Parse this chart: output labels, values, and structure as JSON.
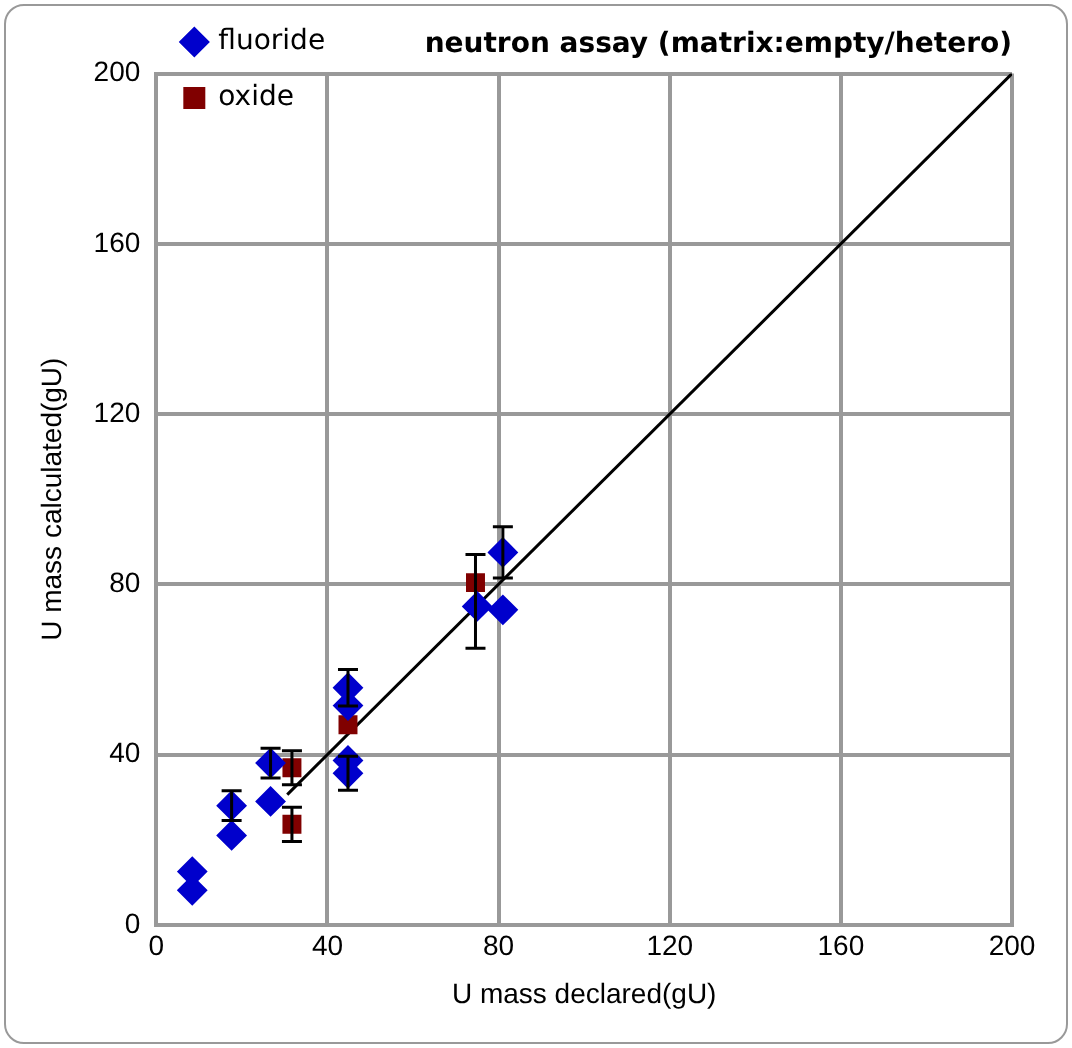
{
  "chart_data": {
    "type": "scatter",
    "title": "neutron assay (matrix:empty/hetero)",
    "xlabel": "U mass declared(gU)",
    "ylabel": "U mass calculated(gU)",
    "xlim": [
      0,
      200
    ],
    "xticks": [
      0,
      40,
      80,
      120,
      160,
      200
    ],
    "ylim": [
      0,
      200
    ],
    "yticks": [
      0,
      40,
      80,
      120,
      160,
      200
    ],
    "grid": true,
    "legend": "top left",
    "series": [
      {
        "name": "fluoride",
        "color": "#0000cc",
        "marker": "diamond",
        "x": [
          8.4,
          8.4,
          17.6,
          17.6,
          26.7,
          26.7,
          44.8,
          44.8,
          44.8,
          44.8,
          75,
          81,
          81
        ],
        "values": [
          8.1,
          12.5,
          21,
          28,
          29,
          38,
          55.7,
          51.5,
          38.6,
          35.6,
          74.8,
          87.5,
          74
        ],
        "errors": [
          null,
          null,
          null,
          3.5,
          null,
          3.5,
          4.3,
          null,
          null,
          4,
          null,
          6,
          null
        ]
      },
      {
        "name": "oxide",
        "color": "#800000",
        "marker": "square",
        "x": [
          31.7,
          31.7,
          44.8,
          74.6
        ],
        "values": [
          36.9,
          23.6,
          47,
          80.4
        ],
        "errors": [
          4,
          4,
          null,
          [
            65,
            87
          ]
        ]
      },
      {
        "type": "line",
        "color": "#000000",
        "marker": "none",
        "x": [
          30.6,
          200
        ],
        "values": [
          30.6,
          200
        ]
      }
    ]
  }
}
